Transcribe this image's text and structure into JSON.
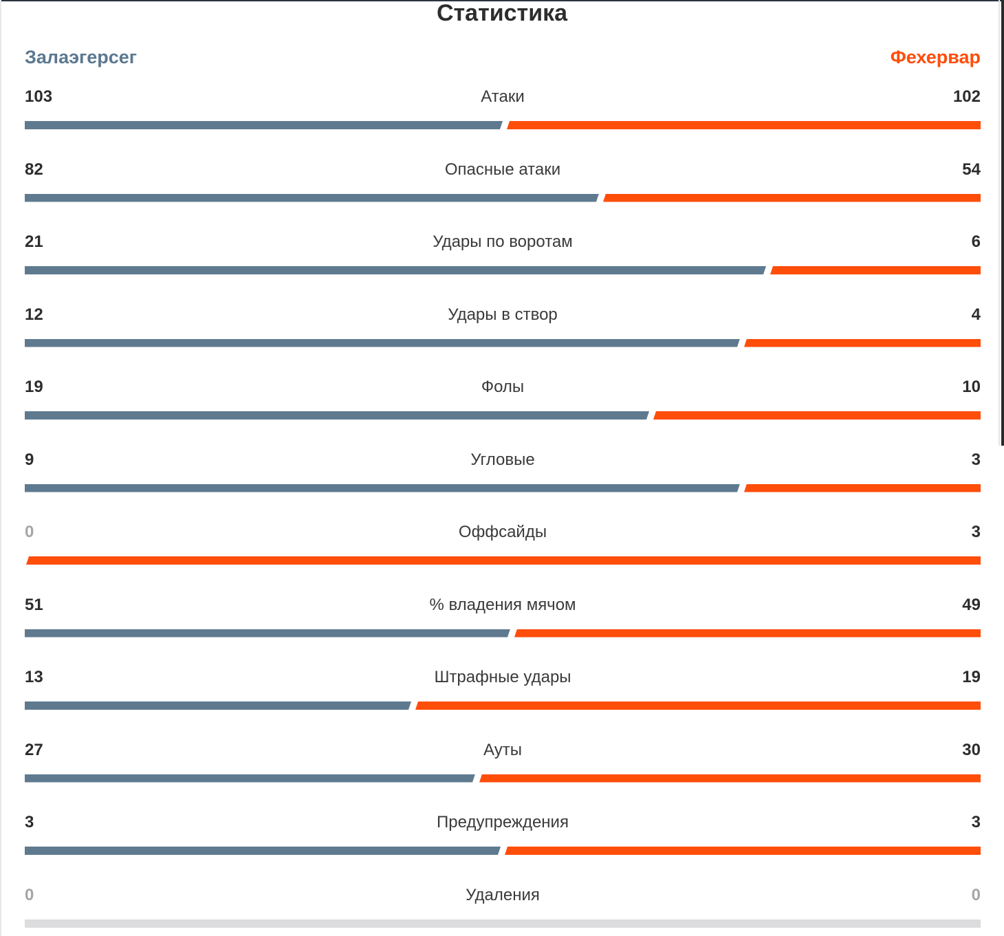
{
  "title": "Статистика",
  "teams": {
    "home": "Залаэгерсег",
    "away": "Фехервар"
  },
  "colors": {
    "home": "#5f7a8f",
    "away": "#ff4d0a",
    "empty": "#dcdcdf"
  },
  "stats": [
    {
      "label": "Атаки",
      "home": "103",
      "away": "102"
    },
    {
      "label": "Опасные атаки",
      "home": "82",
      "away": "54"
    },
    {
      "label": "Удары по воротам",
      "home": "21",
      "away": "6"
    },
    {
      "label": "Удары в створ",
      "home": "12",
      "away": "4"
    },
    {
      "label": "Фолы",
      "home": "19",
      "away": "10"
    },
    {
      "label": "Угловые",
      "home": "9",
      "away": "3"
    },
    {
      "label": "Оффсайды",
      "home": "0",
      "away": "3"
    },
    {
      "label": "% владения мячом",
      "home": "51",
      "away": "49"
    },
    {
      "label": "Штрафные удары",
      "home": "13",
      "away": "19"
    },
    {
      "label": "Ауты",
      "home": "27",
      "away": "30"
    },
    {
      "label": "Предупреждения",
      "home": "3",
      "away": "3"
    },
    {
      "label": "Удаления",
      "home": "0",
      "away": "0"
    }
  ]
}
